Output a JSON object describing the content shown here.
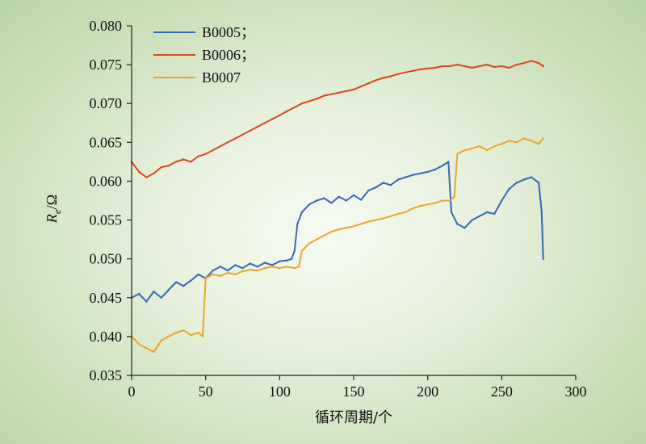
{
  "chart_data": {
    "type": "line",
    "xlabel": "循环周期/个",
    "ylabel": {
      "main": "R",
      "sub": "e",
      "unit": "/Ω"
    },
    "xlim": [
      0,
      300
    ],
    "ylim": [
      0.035,
      0.08
    ],
    "x_ticks": [
      0,
      50,
      100,
      150,
      200,
      250,
      300
    ],
    "y_ticks": [
      0.035,
      0.04,
      0.045,
      0.05,
      0.055,
      0.06,
      0.065,
      0.07,
      0.075,
      0.08
    ],
    "x_tick_labels": [
      "0",
      "50",
      "100",
      "150",
      "200",
      "250",
      "300"
    ],
    "y_tick_labels": [
      "0.035",
      "0.040",
      "0.045",
      "0.050",
      "0.055",
      "0.060",
      "0.065",
      "0.070",
      "0.075",
      "0.080"
    ],
    "grid": false,
    "legend_position": "top-left",
    "series": [
      {
        "name": "B0005；",
        "color": "#3568b5",
        "x": [
          0,
          5,
          10,
          15,
          20,
          25,
          30,
          35,
          40,
          45,
          50,
          55,
          60,
          65,
          70,
          75,
          80,
          85,
          90,
          95,
          100,
          105,
          108,
          110,
          112,
          115,
          120,
          125,
          130,
          135,
          140,
          145,
          150,
          155,
          160,
          165,
          170,
          175,
          180,
          185,
          190,
          195,
          200,
          205,
          210,
          214,
          216,
          220,
          225,
          230,
          235,
          240,
          245,
          250,
          255,
          260,
          265,
          270,
          275,
          277,
          278
        ],
        "values": [
          0.045,
          0.0455,
          0.0445,
          0.0458,
          0.045,
          0.046,
          0.047,
          0.0465,
          0.0472,
          0.048,
          0.0475,
          0.0485,
          0.049,
          0.0485,
          0.0492,
          0.0488,
          0.0494,
          0.049,
          0.0495,
          0.0492,
          0.0497,
          0.0498,
          0.05,
          0.051,
          0.0545,
          0.056,
          0.057,
          0.0575,
          0.0578,
          0.0572,
          0.058,
          0.0575,
          0.0582,
          0.0576,
          0.0588,
          0.0592,
          0.0598,
          0.0595,
          0.0602,
          0.0605,
          0.0608,
          0.061,
          0.0612,
          0.0615,
          0.062,
          0.0625,
          0.056,
          0.0545,
          0.054,
          0.055,
          0.0555,
          0.056,
          0.0558,
          0.0575,
          0.059,
          0.0598,
          0.0602,
          0.0605,
          0.0598,
          0.056,
          0.05
        ]
      },
      {
        "name": "B0006；",
        "color": "#d9481f",
        "x": [
          0,
          5,
          10,
          15,
          20,
          25,
          30,
          35,
          40,
          45,
          50,
          55,
          60,
          65,
          70,
          75,
          80,
          85,
          90,
          95,
          100,
          105,
          110,
          115,
          120,
          125,
          130,
          135,
          140,
          145,
          150,
          155,
          160,
          165,
          170,
          175,
          180,
          185,
          190,
          195,
          200,
          205,
          210,
          215,
          220,
          225,
          230,
          235,
          240,
          245,
          250,
          255,
          260,
          265,
          270,
          275,
          278
        ],
        "values": [
          0.0625,
          0.0612,
          0.0605,
          0.061,
          0.0618,
          0.062,
          0.0625,
          0.0628,
          0.0625,
          0.0632,
          0.0635,
          0.064,
          0.0645,
          0.065,
          0.0655,
          0.066,
          0.0665,
          0.067,
          0.0675,
          0.068,
          0.0685,
          0.069,
          0.0695,
          0.07,
          0.0703,
          0.0706,
          0.071,
          0.0712,
          0.0714,
          0.0716,
          0.0718,
          0.0722,
          0.0726,
          0.073,
          0.0733,
          0.0735,
          0.0738,
          0.074,
          0.0742,
          0.0744,
          0.0745,
          0.0746,
          0.0748,
          0.0748,
          0.075,
          0.0748,
          0.0746,
          0.0748,
          0.075,
          0.0747,
          0.0748,
          0.0746,
          0.075,
          0.0752,
          0.0755,
          0.0752,
          0.0748
        ]
      },
      {
        "name": "B0007",
        "color": "#e8a628",
        "x": [
          0,
          5,
          10,
          15,
          20,
          25,
          30,
          35,
          40,
          45,
          48,
          50,
          55,
          60,
          65,
          70,
          75,
          80,
          85,
          90,
          95,
          100,
          105,
          110,
          113,
          115,
          120,
          125,
          130,
          135,
          140,
          145,
          150,
          155,
          160,
          165,
          170,
          175,
          180,
          185,
          190,
          195,
          200,
          205,
          210,
          215,
          218,
          220,
          225,
          230,
          235,
          240,
          245,
          250,
          255,
          260,
          265,
          270,
          275,
          278
        ],
        "values": [
          0.04,
          0.039,
          0.0385,
          0.038,
          0.0395,
          0.04,
          0.0405,
          0.0408,
          0.0402,
          0.0405,
          0.04,
          0.0475,
          0.048,
          0.0478,
          0.0482,
          0.048,
          0.0484,
          0.0486,
          0.0485,
          0.0488,
          0.049,
          0.0488,
          0.049,
          0.0488,
          0.049,
          0.051,
          0.052,
          0.0525,
          0.053,
          0.0535,
          0.0538,
          0.054,
          0.0542,
          0.0545,
          0.0548,
          0.055,
          0.0552,
          0.0555,
          0.0558,
          0.056,
          0.0565,
          0.0568,
          0.057,
          0.0572,
          0.0575,
          0.0575,
          0.058,
          0.0635,
          0.064,
          0.0642,
          0.0645,
          0.064,
          0.0645,
          0.0648,
          0.0652,
          0.065,
          0.0655,
          0.0652,
          0.0648,
          0.0655
        ]
      }
    ]
  }
}
